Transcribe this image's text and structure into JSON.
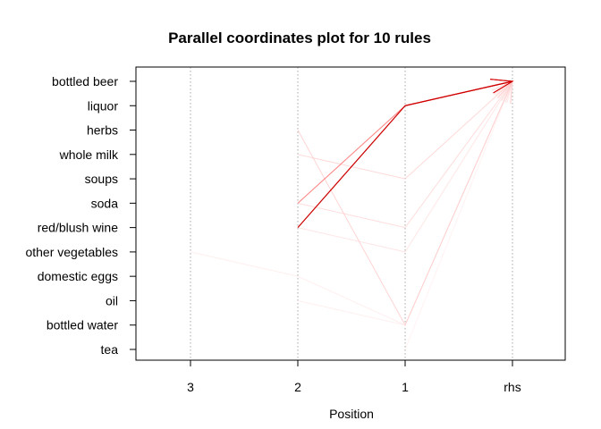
{
  "chart_data": {
    "type": "parallel-coordinates",
    "title": "Parallel coordinates plot for 10 rules",
    "xlabel": "Position",
    "ylabel": "",
    "x_ticks": [
      "3",
      "2",
      "1",
      "rhs"
    ],
    "items": [
      "bottled beer",
      "liquor",
      "herbs",
      "whole milk",
      "soups",
      "soda",
      "red/blush wine",
      "other vegetables",
      "domestic eggs",
      "oil",
      "bottled water",
      "tea"
    ],
    "grid": true,
    "line_color": "#ff0000",
    "rules": [
      {
        "path": {
          "2": "red/blush wine",
          "1": "liquor",
          "rhs": "bottled beer"
        },
        "shade": 1.0
      },
      {
        "path": {
          "2": "soda",
          "1": "liquor",
          "rhs": "bottled beer"
        },
        "shade": 0.5
      },
      {
        "path": {
          "1": "liquor",
          "rhs": "bottled beer"
        },
        "shade": 0.9
      },
      {
        "path": {
          "2": "herbs",
          "1": "bottled water",
          "rhs": "bottled beer"
        },
        "shade": 0.22
      },
      {
        "path": {
          "2": "whole milk",
          "1": "soups",
          "rhs": "bottled beer"
        },
        "shade": 0.2
      },
      {
        "path": {
          "2": "soda",
          "1": "red/blush wine",
          "rhs": "bottled beer"
        },
        "shade": 0.18
      },
      {
        "path": {
          "2": "red/blush wine",
          "1": "other vegetables",
          "rhs": "bottled beer"
        },
        "shade": 0.14
      },
      {
        "path": {
          "3": "other vegetables",
          "2": "domestic eggs",
          "1": "bottled water",
          "rhs": "bottled beer"
        },
        "shade": 0.1
      },
      {
        "path": {
          "2": "oil",
          "1": "bottled water",
          "rhs": "bottled beer"
        },
        "shade": 0.1
      },
      {
        "path": {
          "1": "tea",
          "rhs": "bottled beer"
        },
        "shade": 0.08
      }
    ]
  }
}
